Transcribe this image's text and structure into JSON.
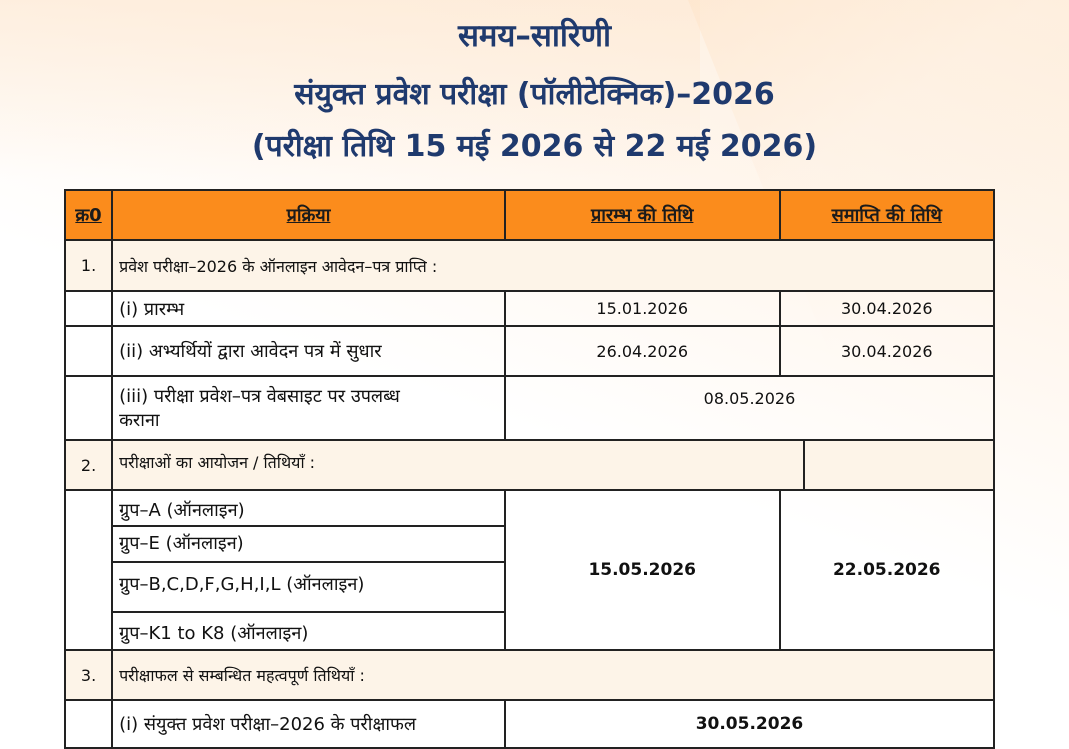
{
  "heading": {
    "line1": "समय–सारिणी",
    "line2": "संयुक्त प्रवेश परीक्षा (पॉलीटेक्निक)–2026",
    "line3": "(परीक्षा तिथि 15 मई 2026 से 22 मई 2026)"
  },
  "table": {
    "headers": {
      "sno": "क्र0",
      "process": "प्रक्रिया",
      "start": "प्रारम्भ की तिथि",
      "end": "समाप्ति की तिथि"
    },
    "section1": {
      "num": "1.",
      "title": "प्रवेश परीक्षा–2026 के ऑनलाइन आवेदन–पत्र प्राप्ति :",
      "rows": [
        {
          "label": "(i) प्रारम्भ",
          "start": "15.01.2026",
          "end": "30.04.2026"
        },
        {
          "label": "(ii) अभ्यर्थियों द्वारा आवेदन पत्र में सुधार",
          "start": "26.04.2026",
          "end": "30.04.2026"
        }
      ],
      "row3": {
        "label_line1": "(iii) परीक्षा प्रवेश–पत्र वेबसाइट पर उपलब्ध",
        "label_line2": "कराना",
        "date": "08.05.2026"
      }
    },
    "section2": {
      "num": "2.",
      "title": "परीक्षाओं का आयोजन / तिथियाँ :",
      "groups": [
        "ग्रुप–A (ऑनलाइन)",
        "ग्रुप–E (ऑनलाइन)",
        "ग्रुप–B,C,D,F,G,H,I,L (ऑनलाइन)",
        "ग्रुप–K1 to K8 (ऑनलाइन)"
      ],
      "start": "15.05.2026",
      "end": "22.05.2026"
    },
    "section3": {
      "num": "3.",
      "title": "परीक्षाफल से सम्बन्धित महत्वपूर्ण तिथियाँ :",
      "row1": {
        "label": "(i) संयुक्त प्रवेश परीक्षा–2026 के परीक्षाफल",
        "date": "30.05.2026"
      }
    }
  }
}
